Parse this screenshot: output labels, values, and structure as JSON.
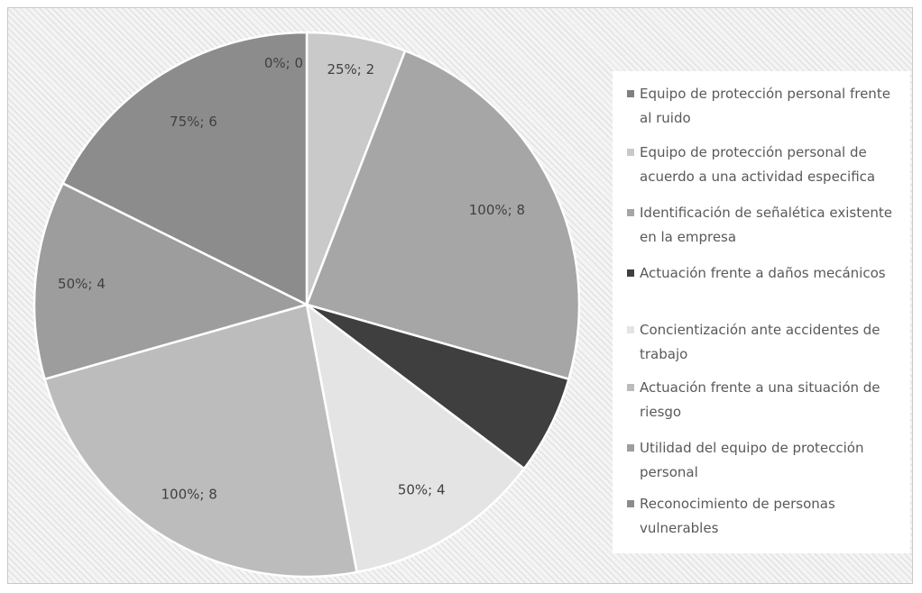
{
  "chart_data": {
    "type": "pie",
    "title": "",
    "legend_position": "right",
    "categories": [
      "Equipo de protección personal frente al ruido",
      "Equipo de protección personal de acuerdo a una actividad especifica",
      "Identificación de señalética existente en la empresa",
      "Actuación frente a daños mecánicos",
      "Concientización ante accidentes de trabajo",
      "Actuación frente a una situación de riesgo",
      "Utilidad del equipo de protección personal",
      "Reconocimiento de personas vulnerables"
    ],
    "values": [
      0,
      2,
      8,
      2,
      4,
      8,
      4,
      6
    ],
    "percentages": [
      "0%",
      "25%",
      "100%",
      "25%",
      "50%",
      "100%",
      "50%",
      "75%"
    ],
    "data_labels": [
      "0%; 0",
      "25%; 2",
      "100%; 8",
      "25%; 2",
      "50%; 4",
      "100%; 8",
      "50%; 4",
      "75%; 6"
    ],
    "colors": [
      "#7f7f7f",
      "#c9c9c9",
      "#a6a6a6",
      "#3f3f3f",
      "#e4e4e4",
      "#bcbcbc",
      "#9d9d9d",
      "#8c8c8c"
    ]
  }
}
